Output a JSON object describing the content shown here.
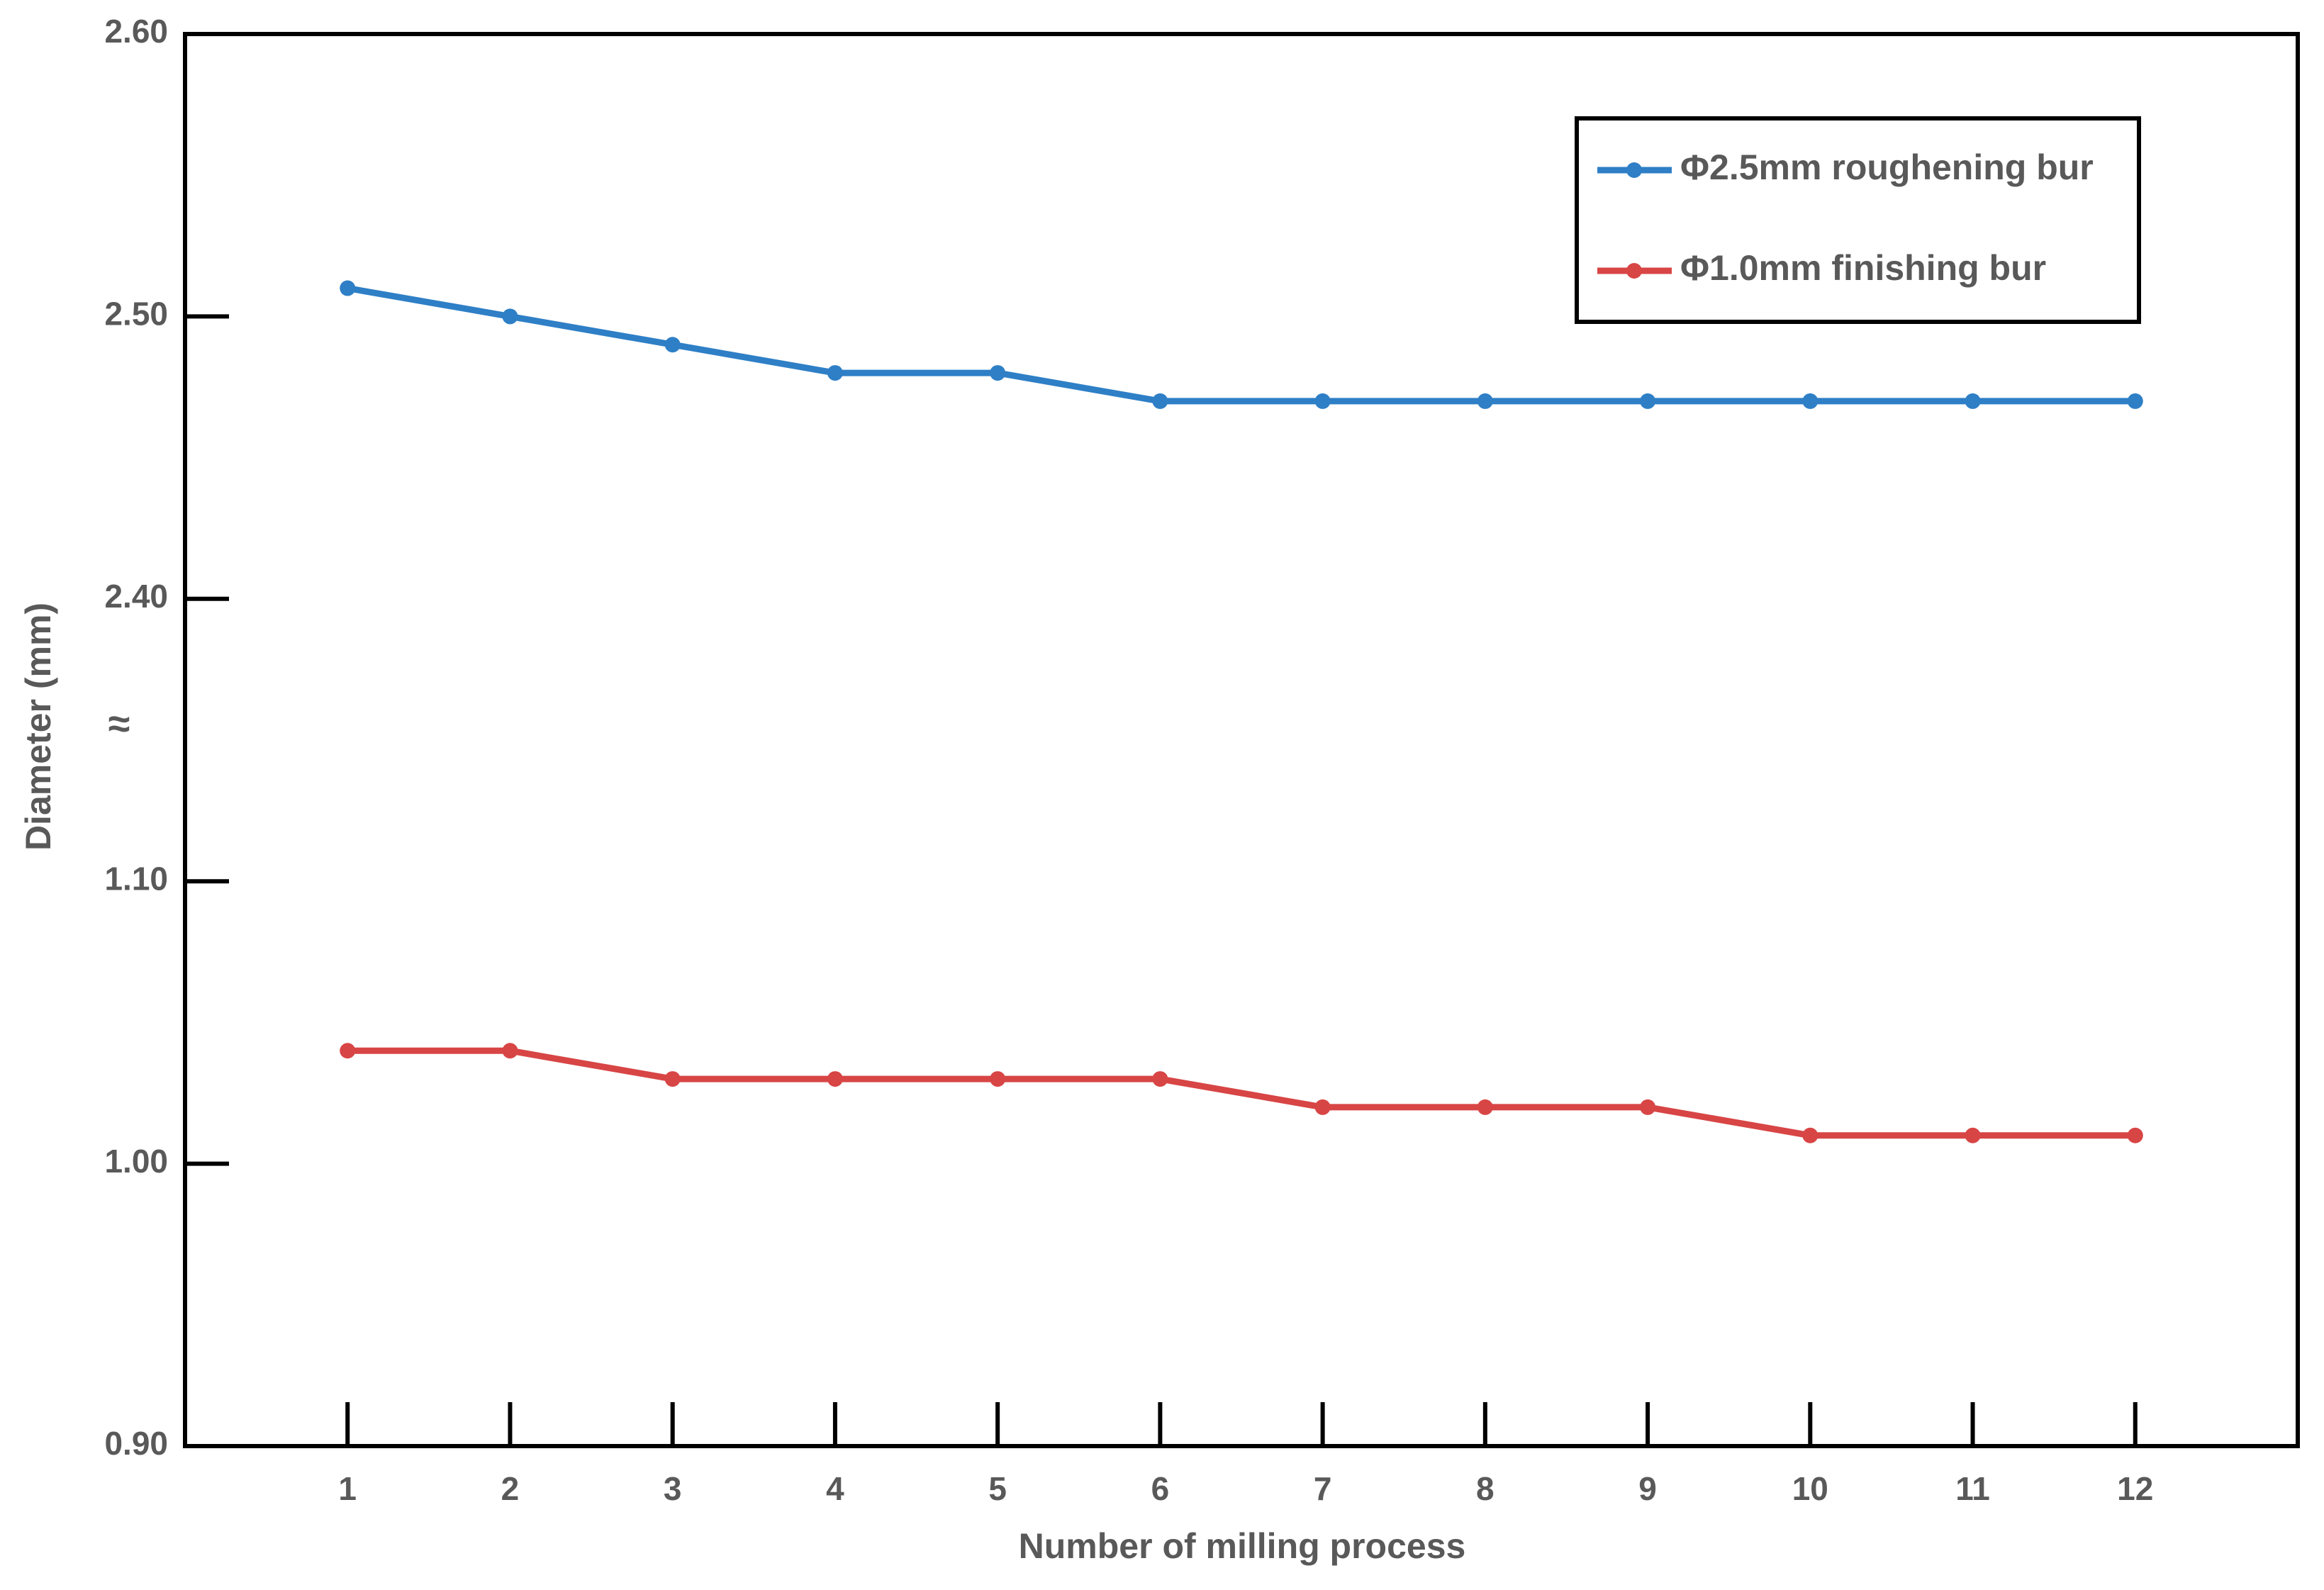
{
  "chart_data": {
    "type": "line",
    "x_label": "Number of milling process",
    "y_label": "Diameter (mm)",
    "x": [
      1,
      2,
      3,
      4,
      5,
      6,
      7,
      8,
      9,
      10,
      11,
      12
    ],
    "series": [
      {
        "name": "Φ2.5mm roughening bur",
        "color": "#2e7fc6",
        "values": [
          2.51,
          2.5,
          2.49,
          2.48,
          2.48,
          2.47,
          2.47,
          2.47,
          2.47,
          2.47,
          2.47,
          2.47
        ]
      },
      {
        "name": "Φ1.0mm finishing bur",
        "color": "#d84545",
        "values": [
          1.04,
          1.04,
          1.03,
          1.03,
          1.03,
          1.03,
          1.02,
          1.02,
          1.02,
          1.01,
          1.01,
          1.01
        ]
      }
    ],
    "xlim": [
      0,
      13
    ],
    "xticks": [
      1,
      2,
      3,
      4,
      5,
      6,
      7,
      8,
      9,
      10,
      11,
      12
    ],
    "ylim": [
      0.9,
      2.6
    ],
    "yticks": [
      {
        "value": 0.9,
        "label": "0.90"
      },
      {
        "value": 1.0,
        "label": "1.00"
      },
      {
        "value": 1.1,
        "label": "1.10"
      },
      {
        "value": 2.4,
        "label": "2.40"
      },
      {
        "value": 2.5,
        "label": "2.50"
      },
      {
        "value": 2.6,
        "label": "2.60"
      }
    ],
    "axis_break": [
      1.1,
      2.4
    ],
    "break_label": "≈",
    "legend": "upper right",
    "grid": false
  }
}
